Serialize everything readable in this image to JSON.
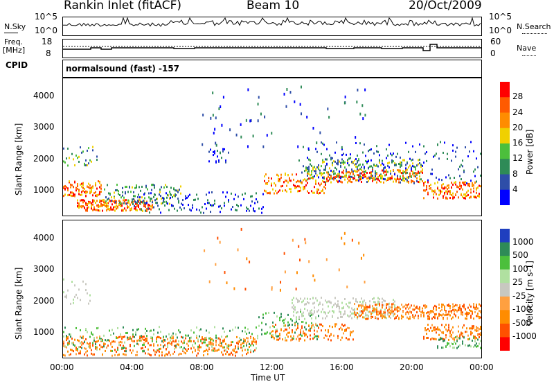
{
  "header": {
    "station": "Rankin Inlet (fitACF)",
    "beam": "Beam 10",
    "date": "20/Oct/2009"
  },
  "noise_panel": {
    "left_label": "N.Sky",
    "left_ticks": [
      "10^5",
      "10^0"
    ],
    "right_label": "N.Search",
    "right_ticks": [
      "10^5",
      "10^0"
    ]
  },
  "freq_panel": {
    "left_label_1": "Freq.",
    "left_label_2": "[MHz]",
    "left_ticks": [
      "18",
      "8"
    ],
    "right_label": "Nave",
    "right_ticks": [
      "60",
      "0"
    ]
  },
  "cpid": {
    "label": "CPID",
    "value": "normalsound (fast) -157"
  },
  "chart_data": [
    {
      "type": "heatmap",
      "title": "",
      "ylabel": "Slant Range [km]",
      "ylim": [
        180,
        4600
      ],
      "yticks": [
        "1000",
        "2000",
        "3000",
        "4000"
      ],
      "x": [
        "00:00",
        "04:00",
        "08:00",
        "12:00",
        "16:00",
        "20:00",
        "00:00"
      ],
      "colorbar": {
        "label": "Power [dB]",
        "ticks": [
          "4",
          "8",
          "12",
          "16",
          "20",
          "24",
          "28"
        ],
        "colors": [
          "#0000ff",
          "#2e4ea8",
          "#2e8b57",
          "#4cbf3c",
          "#f0d000",
          "#ff8c00",
          "#ff5a00",
          "#ff0000"
        ]
      }
    },
    {
      "type": "heatmap",
      "title": "",
      "ylabel": "Slant Range [km]",
      "ylim": [
        180,
        4600
      ],
      "yticks": [
        "1000",
        "2000",
        "3000",
        "4000"
      ],
      "x": [
        "00:00",
        "04:00",
        "08:00",
        "12:00",
        "16:00",
        "20:00",
        "00:00"
      ],
      "xlabel": "Time UT",
      "colorbar": {
        "label": "Velocity [m s-1]",
        "ticks": [
          "1000",
          "500",
          "100",
          "25",
          "-25",
          "-100",
          "-500",
          "-1000"
        ],
        "colors": [
          "#1f3fbf",
          "#2e8b57",
          "#4cbf3c",
          "#b0e0a0",
          "#c8c8c0",
          "#ffa040",
          "#ff8c00",
          "#ff5000",
          "#ff0000"
        ]
      }
    }
  ]
}
